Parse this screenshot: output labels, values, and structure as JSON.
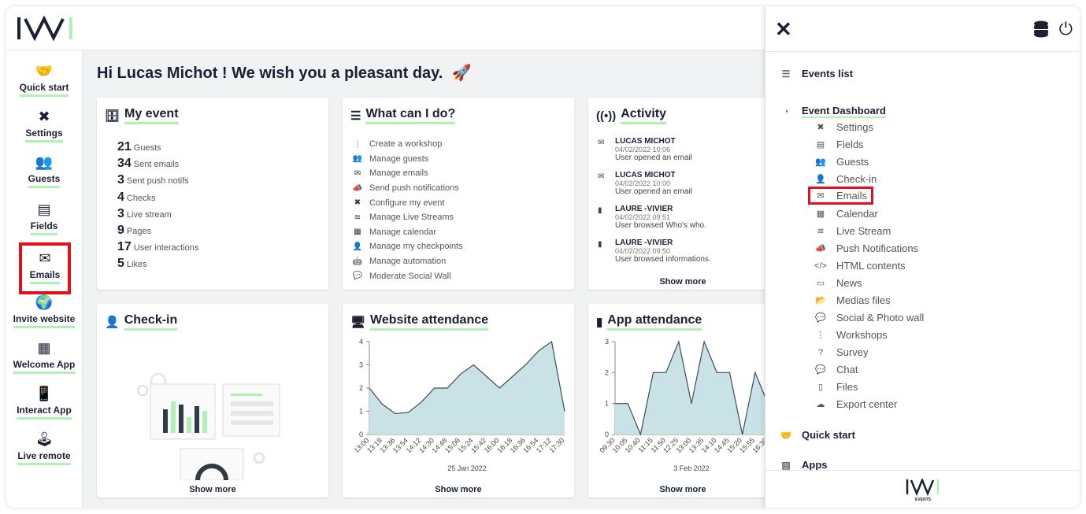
{
  "greeting": "Hi Lucas Michot ! We wish you a pleasant day.",
  "leftnav": [
    {
      "label": "Quick start",
      "icon": "handshake-icon",
      "glyph": "🤝"
    },
    {
      "label": "Settings",
      "icon": "tools-icon",
      "glyph": "✖"
    },
    {
      "label": "Guests",
      "icon": "users-icon",
      "glyph": "👥"
    },
    {
      "label": "Fields",
      "icon": "fields-icon",
      "glyph": "▤"
    },
    {
      "label": "Emails",
      "icon": "envelope-icon",
      "glyph": "✉"
    },
    {
      "label": "Invite website",
      "icon": "globe-icon",
      "glyph": "🌍"
    },
    {
      "label": "Welcome App",
      "icon": "tablet-qr-icon",
      "glyph": "▦"
    },
    {
      "label": "Interact App",
      "icon": "phone-icon",
      "glyph": "📱"
    },
    {
      "label": "Live remote",
      "icon": "joystick-icon",
      "glyph": "🕹"
    }
  ],
  "my_event": {
    "title": "My event",
    "stats": [
      {
        "value": "21",
        "label": "Guests"
      },
      {
        "value": "34",
        "label": "Sent emails"
      },
      {
        "value": "3",
        "label": "Sent push notifs"
      },
      {
        "value": "4",
        "label": "Checks"
      },
      {
        "value": "3",
        "label": "Live stream"
      },
      {
        "value": "9",
        "label": "Pages"
      },
      {
        "value": "17",
        "label": "User interactions"
      },
      {
        "value": "5",
        "label": "Likes"
      }
    ]
  },
  "what_can_i_do": {
    "title": "What can I do?",
    "items": [
      {
        "label": "Create a workshop",
        "icon": "share-nodes-icon",
        "glyph": "⋮"
      },
      {
        "label": "Manage guests",
        "icon": "users-icon",
        "glyph": "👥"
      },
      {
        "label": "Manage emails",
        "icon": "envelope-icon",
        "glyph": "✉"
      },
      {
        "label": "Send push notifications",
        "icon": "bullhorn-icon",
        "glyph": "📣"
      },
      {
        "label": "Configure my event",
        "icon": "tools-icon",
        "glyph": "✖"
      },
      {
        "label": "Manage Live Streams",
        "icon": "waveform-icon",
        "glyph": "≋"
      },
      {
        "label": "Manage calendar",
        "icon": "calendar-icon",
        "glyph": "▦"
      },
      {
        "label": "Manage my checkpoints",
        "icon": "user-check-icon",
        "glyph": "👤"
      },
      {
        "label": "Manage automation",
        "icon": "robot-icon",
        "glyph": "🤖"
      },
      {
        "label": "Moderate Social Wall",
        "icon": "comments-icon",
        "glyph": "💬"
      }
    ]
  },
  "activity": {
    "title": "Activity",
    "entries": [
      {
        "name": "LUCAS MICHOT",
        "date": "04/02/2022 10:06",
        "text": "User opened an email",
        "icon": "envelope-icon",
        "glyph": "✉"
      },
      {
        "name": "LUCAS MICHOT",
        "date": "04/02/2022 10:00",
        "text": "User opened an email",
        "icon": "envelope-icon",
        "glyph": "✉"
      },
      {
        "name": "LAURE -VIVIER",
        "date": "04/02/2022 09:51",
        "text": "User browsed Who's who.",
        "icon": "phone-icon",
        "glyph": "▮"
      },
      {
        "name": "LAURE -VIVIER",
        "date": "04/02/2022 09:50",
        "text": "User browsed informations.",
        "icon": "phone-icon",
        "glyph": "▮"
      }
    ],
    "show_more": "Show more"
  },
  "checkin": {
    "title": "Check-in",
    "show_more": "Show more"
  },
  "website_attendance": {
    "title": "Website attendance",
    "show_more": "Show more"
  },
  "app_attendance": {
    "title": "App attendance",
    "show_more": "Show more"
  },
  "chart_data": [
    {
      "type": "area",
      "title": "Website attendance",
      "x": [
        "13:00",
        "13:18",
        "13:36",
        "13:54",
        "14:12",
        "14:30",
        "14:48",
        "15:06",
        "15:24",
        "15:42",
        "16:00",
        "16:18",
        "16:36",
        "16:54",
        "17:12",
        "17:30"
      ],
      "values": [
        2,
        1.3,
        0.9,
        0.95,
        1.4,
        2,
        2,
        2.6,
        3,
        2.5,
        2,
        2.5,
        3,
        3.6,
        4,
        1
      ],
      "xlabel": "25 Jan 2022",
      "ylim": [
        0,
        4
      ],
      "yticks": [
        0,
        1,
        2,
        3,
        4
      ],
      "color": "#c9e2e6"
    },
    {
      "type": "area",
      "title": "App attendance",
      "x": [
        "09:30",
        "10:05",
        "10:40",
        "11:15",
        "11:50",
        "12:25",
        "13:00",
        "13:35",
        "14:10",
        "14:45",
        "15:20",
        "15:55",
        "16:30"
      ],
      "values": [
        1,
        1,
        0,
        2,
        2,
        3,
        1,
        3,
        2,
        2,
        0,
        2,
        1
      ],
      "xlabel": "3 Feb 2022",
      "ylim": [
        0,
        3
      ],
      "yticks": [
        0,
        1,
        2,
        3
      ],
      "color": "#c9e2e6"
    }
  ],
  "rightpanel": {
    "events_list": "Events list",
    "event_dashboard": "Event Dashboard",
    "items": [
      {
        "label": "Settings",
        "icon": "tools-icon",
        "glyph": "✖"
      },
      {
        "label": "Fields",
        "icon": "fields-icon",
        "glyph": "▤"
      },
      {
        "label": "Guests",
        "icon": "users-icon",
        "glyph": "👥"
      },
      {
        "label": "Check-in",
        "icon": "user-check-icon",
        "glyph": "👤"
      },
      {
        "label": "Emails",
        "icon": "envelope-icon",
        "glyph": "✉"
      },
      {
        "label": "Calendar",
        "icon": "calendar-icon",
        "glyph": "▦"
      },
      {
        "label": "Live Stream",
        "icon": "waveform-icon",
        "glyph": "≋"
      },
      {
        "label": "Push Notifications",
        "icon": "bullhorn-icon",
        "glyph": "📣"
      },
      {
        "label": "HTML contents",
        "icon": "code-icon",
        "glyph": "</>"
      },
      {
        "label": "News",
        "icon": "newspaper-icon",
        "glyph": "▭"
      },
      {
        "label": "Medias files",
        "icon": "folder-open-icon",
        "glyph": "📂"
      },
      {
        "label": "Social & Photo wall",
        "icon": "comments-icon",
        "glyph": "💬"
      },
      {
        "label": "Workshops",
        "icon": "share-nodes-icon",
        "glyph": "⋮"
      },
      {
        "label": "Survey",
        "icon": "question-icon",
        "glyph": "?"
      },
      {
        "label": "Chat",
        "icon": "chat-icon",
        "glyph": "💬"
      },
      {
        "label": "Files",
        "icon": "file-icon",
        "glyph": "▯"
      },
      {
        "label": "Export center",
        "icon": "cloud-download-icon",
        "glyph": "☁"
      }
    ],
    "quick_start": "Quick start",
    "apps": "Apps",
    "footer_logo_text": "EVENTS"
  },
  "colors": {
    "accent": "#aef0b6",
    "highlight": "#e3101c",
    "navy": "#1b2033",
    "chart_fill": "#c9e2e6"
  }
}
